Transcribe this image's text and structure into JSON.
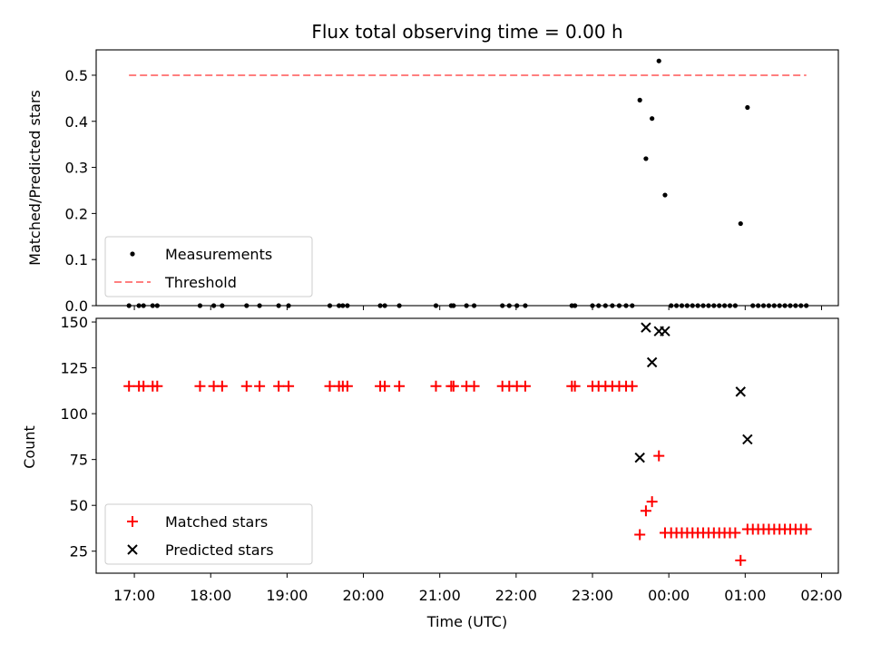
{
  "chart_data": {
    "type": "scatter",
    "title": "Flux total observing time = 0.00 h",
    "xlabel": "Time (UTC)",
    "x_ticks": [
      "17:00",
      "18:00",
      "19:00",
      "20:00",
      "21:00",
      "22:00",
      "23:00",
      "00:00",
      "01:00",
      "02:00"
    ],
    "x_tick_hours": [
      17,
      18,
      19,
      20,
      21,
      22,
      23,
      24,
      25,
      26
    ],
    "xlim_hours": [
      16.5,
      26.22
    ],
    "panels": [
      {
        "id": "ratio",
        "ylabel": "Matched/Predicted stars",
        "ylim": [
          0,
          0.555
        ],
        "y_ticks": [
          0.0,
          0.1,
          0.2,
          0.3,
          0.4,
          0.5
        ],
        "y_tick_labels": [
          "0.0",
          "0.1",
          "0.2",
          "0.3",
          "0.4",
          "0.5"
        ],
        "legend": {
          "location": "lower-left"
        },
        "series": [
          {
            "name": "Measurements",
            "marker": "dot",
            "color": "#000000",
            "points": [
              [
                16.93,
                0
              ],
              [
                17.06,
                0
              ],
              [
                17.12,
                0
              ],
              [
                17.24,
                0
              ],
              [
                17.3,
                0
              ],
              [
                17.86,
                0
              ],
              [
                18.04,
                0
              ],
              [
                18.15,
                0
              ],
              [
                18.47,
                0
              ],
              [
                18.64,
                0
              ],
              [
                18.89,
                0
              ],
              [
                19.02,
                0
              ],
              [
                19.56,
                0
              ],
              [
                19.68,
                0
              ],
              [
                19.73,
                0
              ],
              [
                19.79,
                0
              ],
              [
                20.22,
                0
              ],
              [
                20.28,
                0
              ],
              [
                20.47,
                0
              ],
              [
                20.95,
                0
              ],
              [
                21.15,
                0
              ],
              [
                21.18,
                0
              ],
              [
                21.35,
                0
              ],
              [
                21.45,
                0
              ],
              [
                21.82,
                0
              ],
              [
                21.91,
                0
              ],
              [
                22.01,
                0
              ],
              [
                22.12,
                0
              ],
              [
                22.73,
                0
              ],
              [
                22.77,
                0
              ],
              [
                23.0,
                0
              ],
              [
                23.08,
                0
              ],
              [
                23.17,
                0
              ],
              [
                23.26,
                0
              ],
              [
                23.35,
                0
              ],
              [
                23.44,
                0
              ],
              [
                23.52,
                0
              ],
              [
                23.62,
                0.446
              ],
              [
                23.7,
                0.319
              ],
              [
                23.78,
                0.406
              ],
              [
                23.87,
                0.531
              ],
              [
                23.95,
                0.24
              ],
              [
                24.03,
                0
              ],
              [
                24.1,
                0
              ],
              [
                24.17,
                0
              ],
              [
                24.24,
                0
              ],
              [
                24.31,
                0
              ],
              [
                24.38,
                0
              ],
              [
                24.45,
                0
              ],
              [
                24.52,
                0
              ],
              [
                24.59,
                0
              ],
              [
                24.66,
                0
              ],
              [
                24.73,
                0
              ],
              [
                24.8,
                0
              ],
              [
                24.87,
                0
              ],
              [
                24.94,
                0.178
              ],
              [
                25.03,
                0.43
              ],
              [
                25.1,
                0
              ],
              [
                25.17,
                0
              ],
              [
                25.24,
                0
              ],
              [
                25.31,
                0
              ],
              [
                25.38,
                0
              ],
              [
                25.45,
                0
              ],
              [
                25.52,
                0
              ],
              [
                25.59,
                0
              ],
              [
                25.66,
                0
              ],
              [
                25.73,
                0
              ],
              [
                25.8,
                0
              ]
            ]
          },
          {
            "name": "Threshold",
            "style": "dashed",
            "color": "#ff7f7f",
            "points": [
              [
                16.93,
                0.5
              ],
              [
                25.8,
                0.5
              ]
            ]
          }
        ]
      },
      {
        "id": "count",
        "ylabel": "Count",
        "ylim": [
          13,
          152
        ],
        "y_ticks": [
          25,
          50,
          75,
          100,
          125,
          150
        ],
        "y_tick_labels": [
          "25",
          "50",
          "75",
          "100",
          "125",
          "150"
        ],
        "legend": {
          "location": "lower-left"
        },
        "series": [
          {
            "name": "Matched stars",
            "marker": "plus",
            "color": "#ff0000",
            "points": [
              [
                16.93,
                115
              ],
              [
                17.06,
                115
              ],
              [
                17.12,
                115
              ],
              [
                17.24,
                115
              ],
              [
                17.3,
                115
              ],
              [
                17.86,
                115
              ],
              [
                18.04,
                115
              ],
              [
                18.15,
                115
              ],
              [
                18.47,
                115
              ],
              [
                18.64,
                115
              ],
              [
                18.89,
                115
              ],
              [
                19.02,
                115
              ],
              [
                19.56,
                115
              ],
              [
                19.68,
                115
              ],
              [
                19.73,
                115
              ],
              [
                19.79,
                115
              ],
              [
                20.22,
                115
              ],
              [
                20.28,
                115
              ],
              [
                20.47,
                115
              ],
              [
                20.95,
                115
              ],
              [
                21.15,
                115
              ],
              [
                21.18,
                115
              ],
              [
                21.35,
                115
              ],
              [
                21.45,
                115
              ],
              [
                21.82,
                115
              ],
              [
                21.91,
                115
              ],
              [
                22.01,
                115
              ],
              [
                22.12,
                115
              ],
              [
                22.73,
                115
              ],
              [
                22.77,
                115
              ],
              [
                23.0,
                115
              ],
              [
                23.08,
                115
              ],
              [
                23.17,
                115
              ],
              [
                23.26,
                115
              ],
              [
                23.35,
                115
              ],
              [
                23.44,
                115
              ],
              [
                23.52,
                115
              ],
              [
                23.62,
                34
              ],
              [
                23.7,
                47
              ],
              [
                23.78,
                52
              ],
              [
                23.87,
                77
              ],
              [
                23.95,
                35
              ],
              [
                24.03,
                35
              ],
              [
                24.1,
                35
              ],
              [
                24.17,
                35
              ],
              [
                24.24,
                35
              ],
              [
                24.31,
                35
              ],
              [
                24.38,
                35
              ],
              [
                24.45,
                35
              ],
              [
                24.52,
                35
              ],
              [
                24.59,
                35
              ],
              [
                24.66,
                35
              ],
              [
                24.73,
                35
              ],
              [
                24.8,
                35
              ],
              [
                24.87,
                35
              ],
              [
                24.94,
                20
              ],
              [
                25.03,
                37
              ],
              [
                25.1,
                37
              ],
              [
                25.17,
                37
              ],
              [
                25.24,
                37
              ],
              [
                25.31,
                37
              ],
              [
                25.38,
                37
              ],
              [
                25.45,
                37
              ],
              [
                25.52,
                37
              ],
              [
                25.59,
                37
              ],
              [
                25.66,
                37
              ],
              [
                25.73,
                37
              ],
              [
                25.8,
                37
              ]
            ]
          },
          {
            "name": "Predicted stars",
            "marker": "x",
            "color": "#000000",
            "points": [
              [
                23.62,
                76
              ],
              [
                23.7,
                147
              ],
              [
                23.78,
                128
              ],
              [
                23.87,
                145
              ],
              [
                23.95,
                145
              ],
              [
                24.94,
                112
              ],
              [
                25.03,
                86
              ]
            ]
          }
        ]
      }
    ]
  }
}
